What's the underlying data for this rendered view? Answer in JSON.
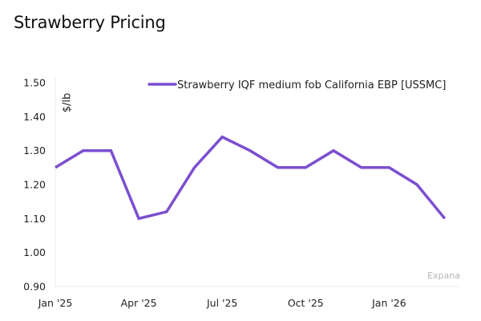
{
  "page": {
    "title": "Strawberry Pricing",
    "watermark": "Expana"
  },
  "chart_data": {
    "type": "line",
    "title": "Strawberry Pricing",
    "xlabel": "",
    "ylabel": "$/lb",
    "x": [
      "Jan '25",
      "Feb '25",
      "Mar '25",
      "Apr '25",
      "May '25",
      "Jun '25",
      "Jul '25",
      "Aug '25",
      "Sep '25",
      "Oct '25",
      "Nov '25",
      "Dec '25",
      "Jan '26",
      "Feb '26",
      "Mar '26"
    ],
    "x_tick_labels": [
      "Jan '25",
      "Apr '25",
      "Jul '25",
      "Oct '25",
      "Jan '26"
    ],
    "y_tick_labels": [
      "0.90",
      "1.00",
      "1.10",
      "1.20",
      "1.30",
      "1.40",
      "1.50"
    ],
    "ylim": [
      0.9,
      1.5
    ],
    "grid": false,
    "legend_position": "top-right",
    "series": [
      {
        "name": "Strawberry IQF medium fob California EBP [USSMC]",
        "color": "#7b4fd0",
        "values": [
          1.25,
          1.3,
          1.3,
          1.1,
          1.12,
          1.25,
          1.34,
          1.3,
          1.25,
          1.25,
          1.3,
          1.25,
          1.25,
          1.2,
          1.1
        ]
      }
    ],
    "source": "Expana"
  }
}
